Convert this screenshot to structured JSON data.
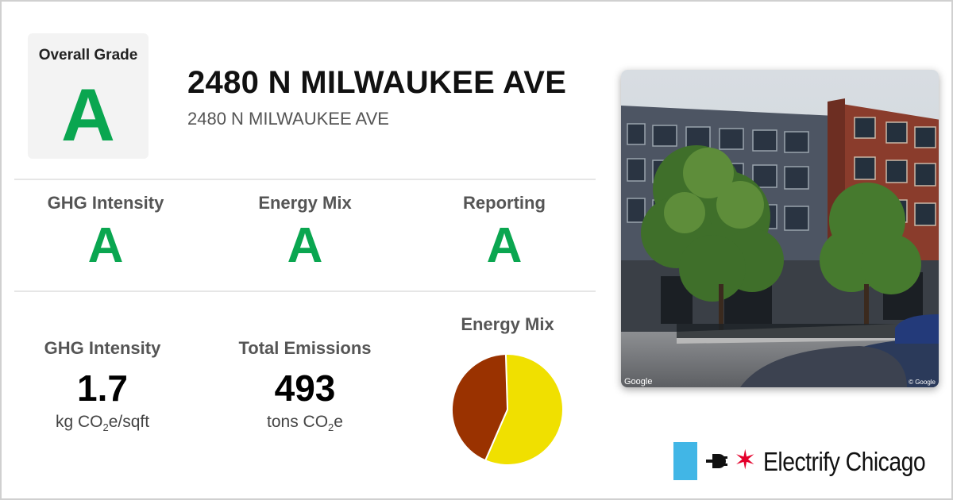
{
  "overall": {
    "label": "Overall Grade",
    "grade": "A"
  },
  "building": {
    "title": "2480 N MILWAUKEE AVE",
    "subtitle": "2480 N MILWAUKEE AVE"
  },
  "grades": [
    {
      "label": "GHG Intensity",
      "grade": "A"
    },
    {
      "label": "Energy Mix",
      "grade": "A"
    },
    {
      "label": "Reporting",
      "grade": "A"
    }
  ],
  "stats": {
    "ghg_intensity": {
      "label": "GHG Intensity",
      "value": "1.7",
      "unit_prefix": "kg CO",
      "unit_sub": "2",
      "unit_suffix": "e/sqft"
    },
    "total_emissions": {
      "label": "Total Emissions",
      "value": "493",
      "unit_prefix": "tons CO",
      "unit_sub": "2",
      "unit_suffix": "e"
    }
  },
  "energy_mix_title": "Energy Mix",
  "chart_data": {
    "type": "pie",
    "title": "Energy Mix",
    "slices": [
      {
        "value": 57,
        "color": "#f0e000"
      },
      {
        "value": 43,
        "color": "#9a3200"
      }
    ]
  },
  "photo": {
    "credit_left": "Google",
    "credit_right": "© Google"
  },
  "logo": {
    "text": "Electrify Chicago"
  },
  "colors": {
    "grade_green": "#0aa650",
    "logo_blue": "#41b6e6",
    "logo_red": "#e4002b"
  }
}
